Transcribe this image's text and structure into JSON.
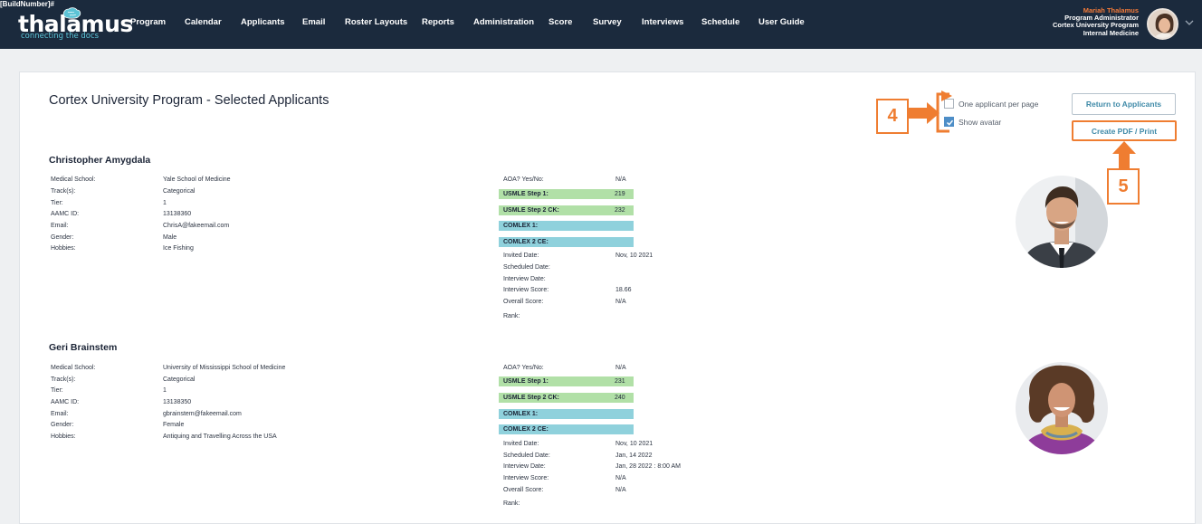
{
  "build_tag": "[BuildNumber]#",
  "brand": {
    "wordmark": "thalamus",
    "tagline": "connecting the docs",
    "logo_icon": "brain-icon"
  },
  "nav": [
    "Program",
    "Calendar",
    "Applicants",
    "Email",
    "Roster Layouts",
    "Reports",
    "Administration",
    "Score",
    "Survey",
    "Interviews",
    "Schedule",
    "User Guide"
  ],
  "user": {
    "name": "Mariah Thalamus",
    "role": "Program Administrator",
    "program": "Cortex University Program",
    "specialty": "Internal Medicine"
  },
  "page": {
    "title": "Cortex University Program - Selected Applicants"
  },
  "options": {
    "one_per_page": "One applicant per page",
    "one_per_page_checked": false,
    "show_avatar": "Show avatar",
    "show_avatar_checked": true
  },
  "buttons": {
    "return": "Return to Applicants",
    "create_pdf": "Create PDF / Print"
  },
  "callouts": {
    "checkbox_step": "4",
    "pdf_step": "5"
  },
  "colors": {
    "header_bg": "#1b2a3d",
    "accent_orange": "#ef7d31",
    "step_green": "#b1e0a7",
    "comlex_teal": "#8fd1dc",
    "button_text": "#3f8aa8"
  },
  "applicants": [
    {
      "name": "Christopher Amygdala",
      "details": [
        {
          "label": "Medical School:",
          "value": "Yale School of Medicine"
        },
        {
          "label": "Track(s):",
          "value": "Categorical"
        },
        {
          "label": "Tier:",
          "value": "1"
        },
        {
          "label": "AAMC ID:",
          "value": "13138360"
        },
        {
          "label": "Email:",
          "value": "ChrisA@fakeemail.com"
        },
        {
          "label": "Gender:",
          "value": "Male"
        },
        {
          "label": "Hobbies:",
          "value": "Ice Fishing"
        }
      ],
      "aoa": {
        "label": "AOA? Yes/No:",
        "value": "N/A"
      },
      "scores": [
        {
          "label": "USMLE Step 1:",
          "value": "219"
        },
        {
          "label": "USMLE Step 2 CK:",
          "value": "232"
        },
        {
          "label": "COMLEX 1:",
          "value": ""
        },
        {
          "label": "COMLEX 2 CE:",
          "value": ""
        }
      ],
      "dates": [
        {
          "label": "Invited Date:",
          "value": "Nov, 10 2021"
        },
        {
          "label": "Scheduled Date:",
          "value": ""
        },
        {
          "label": "Interview Date:",
          "value": ""
        },
        {
          "label": "Interview Score:",
          "value": "18.66"
        },
        {
          "label": "Overall Score:",
          "value": "N/A"
        }
      ],
      "rank": {
        "label": "Rank:",
        "value": ""
      }
    },
    {
      "name": "Geri Brainstem",
      "details": [
        {
          "label": "Medical School:",
          "value": "University of Mississippi School of Medicine"
        },
        {
          "label": "Track(s):",
          "value": "Categorical"
        },
        {
          "label": "Tier:",
          "value": "1"
        },
        {
          "label": "AAMC ID:",
          "value": "13138350"
        },
        {
          "label": "Email:",
          "value": "gbrainstem@fakeemail.com"
        },
        {
          "label": "Gender:",
          "value": "Female"
        },
        {
          "label": "Hobbies:",
          "value": "Antiquing and Travelling Across the USA"
        }
      ],
      "aoa": {
        "label": "AOA? Yes/No:",
        "value": "N/A"
      },
      "scores": [
        {
          "label": "USMLE Step 1:",
          "value": "231"
        },
        {
          "label": "USMLE Step 2 CK:",
          "value": "240"
        },
        {
          "label": "COMLEX 1:",
          "value": ""
        },
        {
          "label": "COMLEX 2 CE:",
          "value": ""
        }
      ],
      "dates": [
        {
          "label": "Invited Date:",
          "value": "Nov, 10 2021"
        },
        {
          "label": "Scheduled Date:",
          "value": "Jan, 14 2022"
        },
        {
          "label": "Interview Date:",
          "value": "Jan, 28 2022 : 8:00 AM"
        },
        {
          "label": "Interview Score:",
          "value": "N/A"
        },
        {
          "label": "Overall Score:",
          "value": "N/A"
        }
      ],
      "rank": {
        "label": "Rank:",
        "value": ""
      }
    }
  ]
}
